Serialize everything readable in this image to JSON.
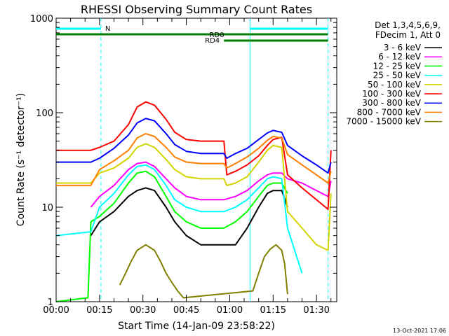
{
  "chart_data": {
    "type": "line",
    "title": "RHESSI Observing Summary Count Rates",
    "ylabel": "Count Rate (s⁻¹ detector⁻¹)",
    "xlabel": "Start Time (14-Jan-09 23:58:22)",
    "y_scale": "log",
    "ylim": [
      1,
      1000
    ],
    "y_ticks": [
      "1",
      "10",
      "100",
      "1000"
    ],
    "x_unit": "minutes from 00:00",
    "xlim": [
      0,
      97
    ],
    "x_ticks": [
      {
        "x": 0,
        "label": "00:00"
      },
      {
        "x": 15,
        "label": "00:15"
      },
      {
        "x": 30,
        "label": "00:30"
      },
      {
        "x": 45,
        "label": "00:45"
      },
      {
        "x": 60,
        "label": "01:00"
      },
      {
        "x": 75,
        "label": "01:15"
      },
      {
        "x": 90,
        "label": "01:30"
      }
    ],
    "legend_header": [
      "Det 1,3,4,5,6,9,",
      "FDecim 1, Att 0"
    ],
    "legend_position": "right",
    "timestamp": "13-Oct-2021 17:06",
    "annotations": {
      "N": {
        "label": "N",
        "color": "#00ffff",
        "spans": [
          [
            0,
            15.5
          ],
          [
            67,
            94
          ]
        ]
      },
      "RD0": {
        "label": "RD0",
        "color": "#007f00",
        "x_range": [
          0,
          94
        ]
      },
      "RD4": {
        "label": "RD4",
        "color": "#007f00",
        "x_range": [
          58,
          94
        ]
      },
      "vlines": [
        {
          "x": 15.5,
          "color": "#00ffff",
          "style": "dashed"
        },
        {
          "x": 67,
          "color": "#00ffff",
          "style": "solid"
        },
        {
          "x": 94,
          "color": "#00ffff",
          "style": "dashed"
        }
      ]
    },
    "series": [
      {
        "name": "3 - 6 keV",
        "color": "#000000",
        "x": [
          12,
          15,
          20,
          25,
          28,
          31,
          34,
          38,
          41,
          45,
          50,
          55,
          58,
          62,
          66,
          70,
          73,
          75,
          78,
          80
        ],
        "y": [
          5,
          7,
          9,
          13,
          15,
          16,
          15,
          10,
          7,
          5,
          4,
          4,
          4,
          4,
          6,
          10,
          14,
          15,
          15,
          10
        ]
      },
      {
        "name": "6 - 12 keV",
        "color": "#ff00ff",
        "x": [
          12,
          15,
          20,
          25,
          28,
          31,
          34,
          38,
          41,
          45,
          50,
          55,
          58,
          62,
          66,
          70,
          73,
          75,
          78,
          80,
          85,
          90,
          94,
          95
        ],
        "y": [
          10,
          13,
          17,
          25,
          29,
          30,
          27,
          20,
          16,
          13,
          12,
          12,
          12,
          13,
          15,
          19,
          22,
          23,
          23,
          20,
          18,
          15,
          13,
          19
        ]
      },
      {
        "name": "12 - 25 keV",
        "color": "#00ff00",
        "x": [
          0,
          11,
          12,
          15,
          20,
          25,
          28,
          31,
          34,
          38,
          41,
          45,
          50,
          55,
          58,
          62,
          66,
          70,
          73,
          75,
          78,
          80
        ],
        "y": [
          1,
          1.1,
          7,
          8,
          11,
          18,
          23,
          24,
          21,
          13,
          9,
          7,
          6,
          6,
          6,
          7,
          9,
          13,
          17,
          18,
          18,
          14
        ]
      },
      {
        "name": "25 - 50 keV",
        "color": "#00ffff",
        "x": [
          0,
          12,
          15,
          20,
          25,
          28,
          31,
          34,
          38,
          41,
          45,
          50,
          55,
          58,
          62,
          66,
          70,
          73,
          75,
          78,
          80,
          85
        ],
        "y": [
          5,
          5.5,
          10,
          14,
          22,
          27,
          28,
          25,
          17,
          12,
          10,
          9,
          9,
          9,
          10,
          12,
          16,
          20,
          21,
          20,
          6,
          2
        ]
      },
      {
        "name": "50 - 100 keV",
        "color": "#d4d400",
        "x": [
          0,
          12,
          15,
          20,
          25,
          28,
          31,
          34,
          38,
          41,
          45,
          50,
          55,
          58,
          59,
          62,
          66,
          70,
          73,
          75,
          78,
          80,
          85,
          90,
          94,
          95
        ],
        "y": [
          18,
          18,
          23,
          26,
          33,
          43,
          47,
          43,
          32,
          25,
          21,
          20,
          20,
          20,
          17,
          18,
          21,
          30,
          40,
          45,
          43,
          9,
          6,
          4,
          3.5,
          14
        ]
      },
      {
        "name": "100 - 300 keV",
        "color": "#ff0000",
        "x": [
          0,
          12,
          15,
          20,
          25,
          28,
          31,
          34,
          38,
          41,
          45,
          50,
          55,
          58,
          59,
          62,
          66,
          70,
          73,
          75,
          78,
          80,
          85,
          90,
          94,
          95
        ],
        "y": [
          40,
          40,
          43,
          50,
          75,
          115,
          130,
          120,
          85,
          62,
          52,
          50,
          50,
          50,
          22,
          24,
          28,
          35,
          45,
          52,
          55,
          22,
          16,
          12,
          9.5,
          40
        ]
      },
      {
        "name": "300 - 800 keV",
        "color": "#0000ff",
        "x": [
          0,
          12,
          15,
          20,
          25,
          28,
          31,
          34,
          38,
          41,
          45,
          50,
          55,
          58,
          59,
          62,
          66,
          70,
          73,
          75,
          78,
          80,
          85,
          90,
          94,
          95
        ],
        "y": [
          30,
          30,
          33,
          42,
          58,
          78,
          87,
          82,
          60,
          46,
          39,
          37,
          37,
          37,
          33,
          37,
          42,
          52,
          61,
          65,
          62,
          45,
          35,
          28,
          23,
          30
        ]
      },
      {
        "name": "800 - 7000 keV",
        "color": "#ff7f00",
        "x": [
          0,
          12,
          15,
          20,
          25,
          28,
          31,
          34,
          38,
          41,
          45,
          50,
          55,
          58,
          59,
          62,
          66,
          70,
          73,
          75,
          78,
          80,
          85,
          90,
          94,
          95
        ],
        "y": [
          17,
          17,
          25,
          31,
          40,
          54,
          60,
          56,
          43,
          34,
          30,
          29,
          29,
          29,
          26,
          29,
          34,
          42,
          51,
          56,
          54,
          36,
          28,
          22,
          18,
          24
        ]
      },
      {
        "name": "7000 - 15000 keV",
        "color": "#808000",
        "x": [
          22,
          24,
          26,
          28,
          31,
          34,
          36,
          38,
          40,
          42,
          44,
          68,
          70,
          72,
          74,
          76,
          78,
          79,
          80
        ],
        "y": [
          1.5,
          2,
          2.7,
          3.5,
          4,
          3.5,
          2.7,
          2,
          1.6,
          1.3,
          1.1,
          1.3,
          2,
          3,
          3.6,
          4,
          3.5,
          2.5,
          1.2
        ]
      }
    ]
  }
}
